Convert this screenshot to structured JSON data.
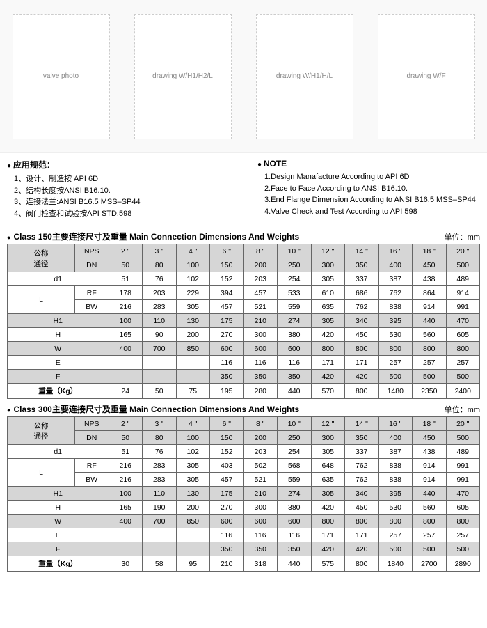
{
  "diagrams": [
    "valve-photo",
    "valve-drawing-1",
    "valve-drawing-2",
    "valve-drawing-3"
  ],
  "notes_cn": {
    "heading": "应用规范：",
    "items": [
      "1、设计、制造按 API 6D",
      "2、结构长度按ANSI B16.10.",
      "3、连接法兰:ANSI B16.5 MSS–SP44",
      "4、阀门检查和试验按API STD.598"
    ]
  },
  "notes_en": {
    "heading": "NOTE",
    "items": [
      "1.Design Manafacture According to API 6D",
      "2.Face to Face According to ANSI B16.10.",
      "3.End Flange Dimension According to ANSI B16.5 MSS–SP44",
      "4.Valve Check and Test According to API 598"
    ]
  },
  "unit_label": "单位：mm",
  "col_headers": {
    "nominal": "公称\n通径",
    "nps": "NPS",
    "dn": "DN",
    "nps_vals": [
      "2 \"",
      "3 \"",
      "4 \"",
      "6 \"",
      "8 \"",
      "10 \"",
      "12 \"",
      "14 \"",
      "16 \"",
      "18 \"",
      "20 \""
    ],
    "dn_vals": [
      "50",
      "80",
      "100",
      "150",
      "200",
      "250",
      "300",
      "350",
      "400",
      "450",
      "500"
    ]
  },
  "row_labels": {
    "d1": "d1",
    "L": "L",
    "RF": "RF",
    "BW": "BW",
    "H1": "H1",
    "H": "H",
    "W": "W",
    "E": "E",
    "F": "F",
    "weight": "重量（Kg）"
  },
  "t150": {
    "title": "Class 150主要连接尺寸及重量 Main Connection Dimensions And Weights",
    "d1": [
      "51",
      "76",
      "102",
      "152",
      "203",
      "254",
      "305",
      "337",
      "387",
      "438",
      "489"
    ],
    "L_RF": [
      "178",
      "203",
      "229",
      "394",
      "457",
      "533",
      "610",
      "686",
      "762",
      "864",
      "914"
    ],
    "L_BW": [
      "216",
      "283",
      "305",
      "457",
      "521",
      "559",
      "635",
      "762",
      "838",
      "914",
      "991"
    ],
    "H1": [
      "100",
      "110",
      "130",
      "175",
      "210",
      "274",
      "305",
      "340",
      "395",
      "440",
      "470"
    ],
    "H": [
      "165",
      "90",
      "200",
      "270",
      "300",
      "380",
      "420",
      "450",
      "530",
      "560",
      "605"
    ],
    "W": [
      "400",
      "700",
      "850",
      "600",
      "600",
      "600",
      "800",
      "800",
      "800",
      "800",
      "800"
    ],
    "E": [
      "",
      "",
      "",
      "116",
      "116",
      "116",
      "171",
      "171",
      "257",
      "257",
      "257"
    ],
    "F": [
      "",
      "",
      "",
      "350",
      "350",
      "350",
      "420",
      "420",
      "500",
      "500",
      "500"
    ],
    "weight": [
      "24",
      "50",
      "75",
      "195",
      "280",
      "440",
      "570",
      "800",
      "1480",
      "2350",
      "2400"
    ]
  },
  "t300": {
    "title": "Class 300主要连接尺寸及重量 Main Connection Dimensions And Weights",
    "d1": [
      "51",
      "76",
      "102",
      "152",
      "203",
      "254",
      "305",
      "337",
      "387",
      "438",
      "489"
    ],
    "L_RF": [
      "216",
      "283",
      "305",
      "403",
      "502",
      "568",
      "648",
      "762",
      "838",
      "914",
      "991"
    ],
    "L_BW": [
      "216",
      "283",
      "305",
      "457",
      "521",
      "559",
      "635",
      "762",
      "838",
      "914",
      "991"
    ],
    "H1": [
      "100",
      "110",
      "130",
      "175",
      "210",
      "274",
      "305",
      "340",
      "395",
      "440",
      "470"
    ],
    "H": [
      "165",
      "190",
      "200",
      "270",
      "300",
      "380",
      "420",
      "450",
      "530",
      "560",
      "605"
    ],
    "W": [
      "400",
      "700",
      "850",
      "600",
      "600",
      "600",
      "800",
      "800",
      "800",
      "800",
      "800"
    ],
    "E": [
      "",
      "",
      "",
      "116",
      "116",
      "116",
      "171",
      "171",
      "257",
      "257",
      "257"
    ],
    "F": [
      "",
      "",
      "",
      "350",
      "350",
      "350",
      "420",
      "420",
      "500",
      "500",
      "500"
    ],
    "weight": [
      "30",
      "58",
      "95",
      "210",
      "318",
      "440",
      "575",
      "800",
      "1840",
      "2700",
      "2890"
    ]
  },
  "colors": {
    "header_bg": "#d6d6d6",
    "border": "#666666",
    "text": "#000000"
  }
}
